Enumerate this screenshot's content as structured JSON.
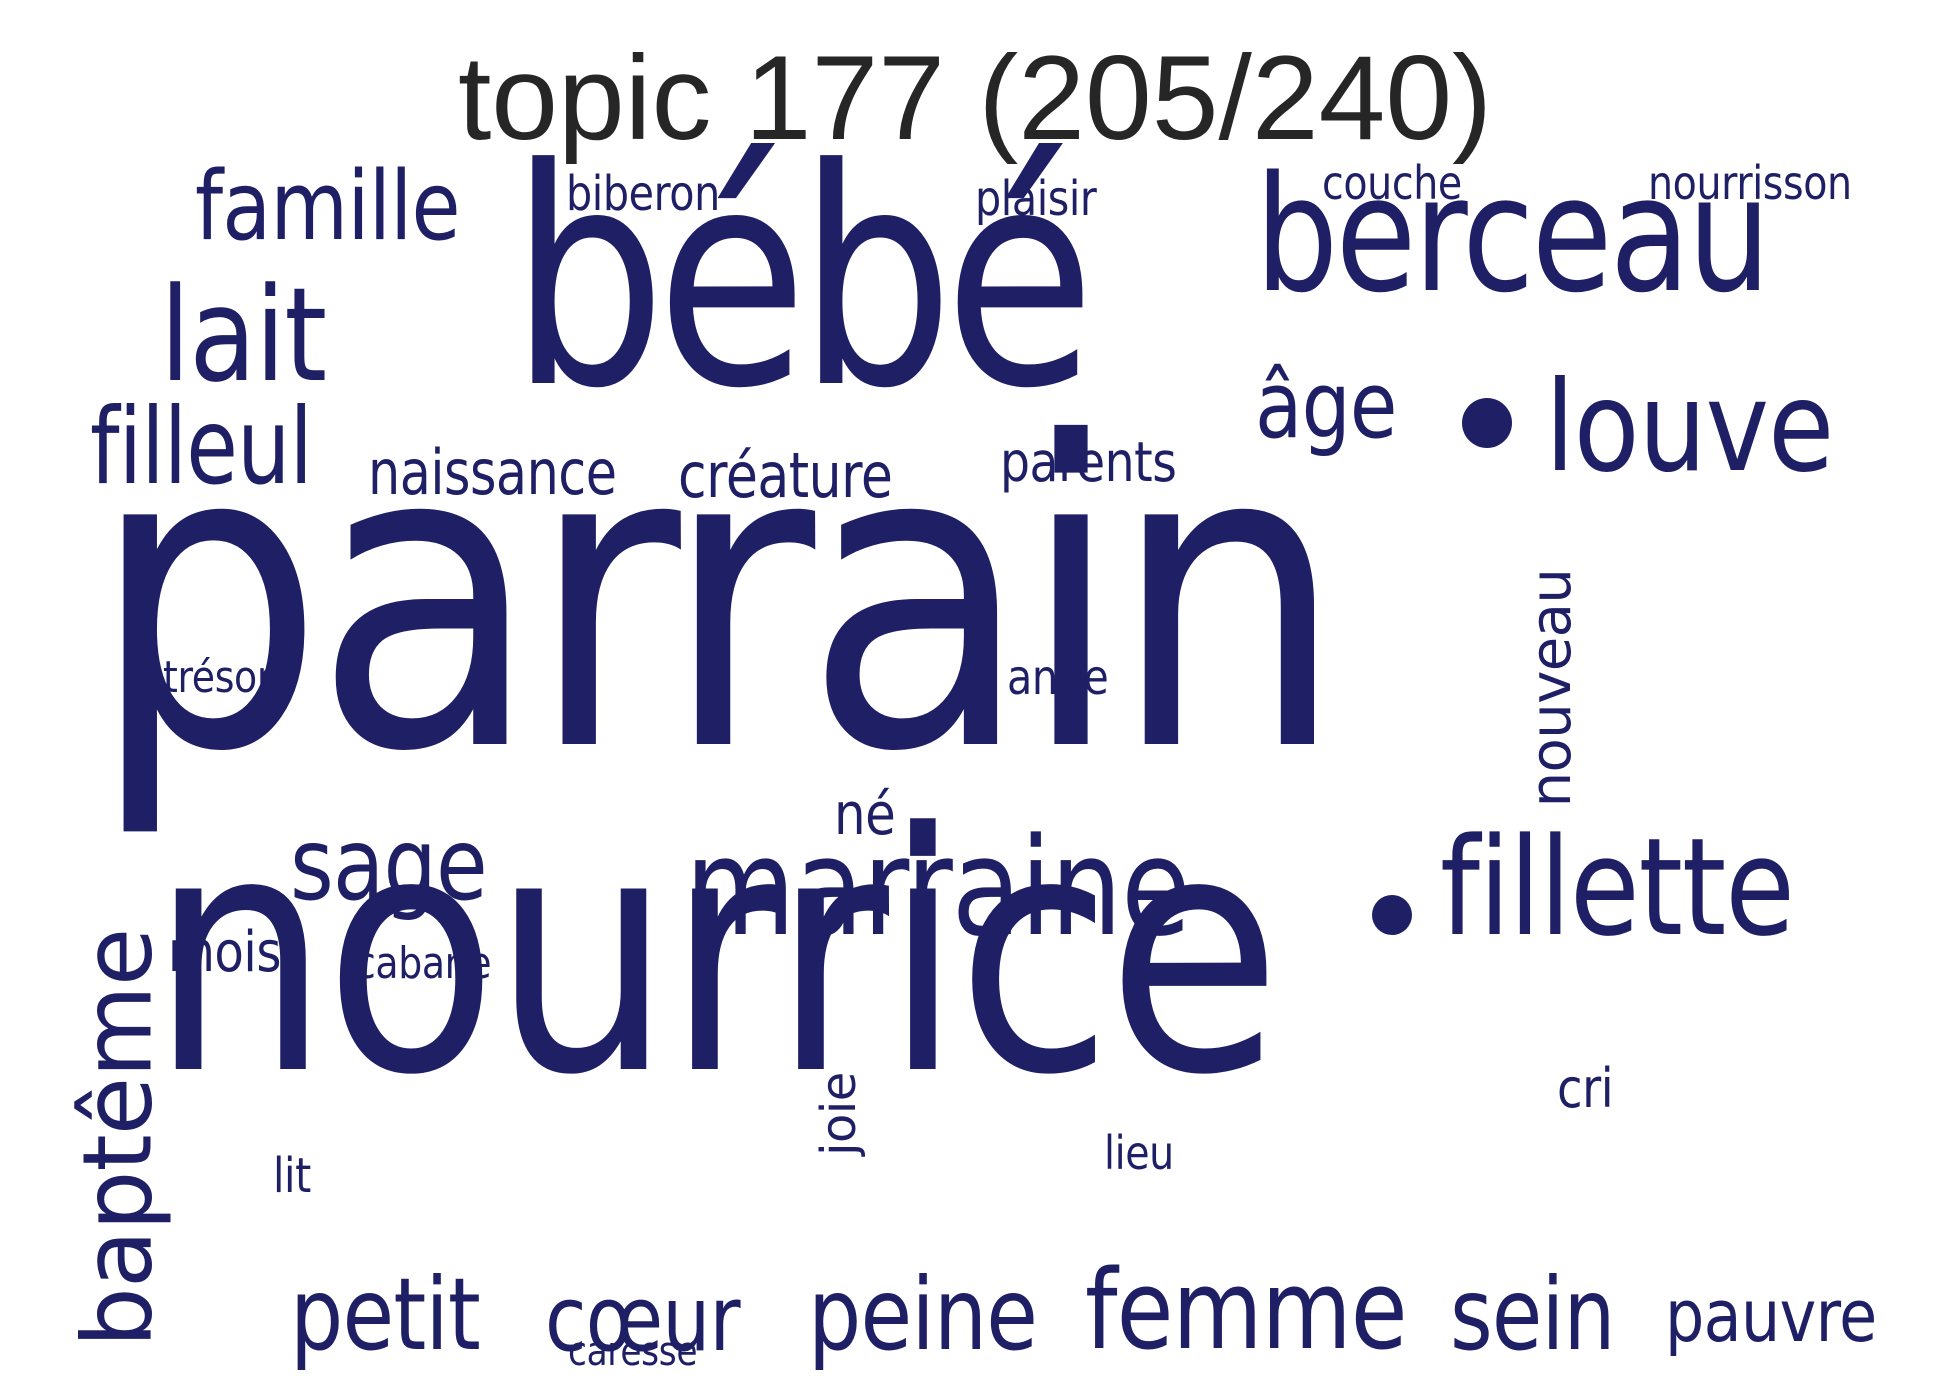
{
  "title": "topic 177 (205/240)",
  "color": "#1f1f66",
  "words": {
    "parrain": "parrain",
    "nourrice": "nourrice",
    "bebe": "bébé",
    "berceau": "berceau",
    "marraine": "marraine",
    "fillette": "fillette",
    "louve": "louve",
    "lait": "lait",
    "famille": "famille",
    "filleul": "filleul",
    "femme": "femme",
    "sein": "sein",
    "petit": "petit",
    "coeur": "cœur",
    "peine": "peine",
    "bapteme": "baptême",
    "sage": "sage",
    "age": "âge",
    "naissance": "naissance",
    "creature": "créature",
    "parents": "parents",
    "pauvre": "pauvre",
    "nouveau": "nouveau",
    "biberon": "biberon",
    "plaisir": "plaisir",
    "couche": "couche",
    "nourrisson": "nourrisson",
    "mois": "mois",
    "cabane": "cabane",
    "ne": "né",
    "cri": "cri",
    "tresor": "trésor",
    "ange": "ange",
    "joie": "joie",
    "lieu": "lieu",
    "lit": "lit",
    "caresse": "caresse"
  }
}
